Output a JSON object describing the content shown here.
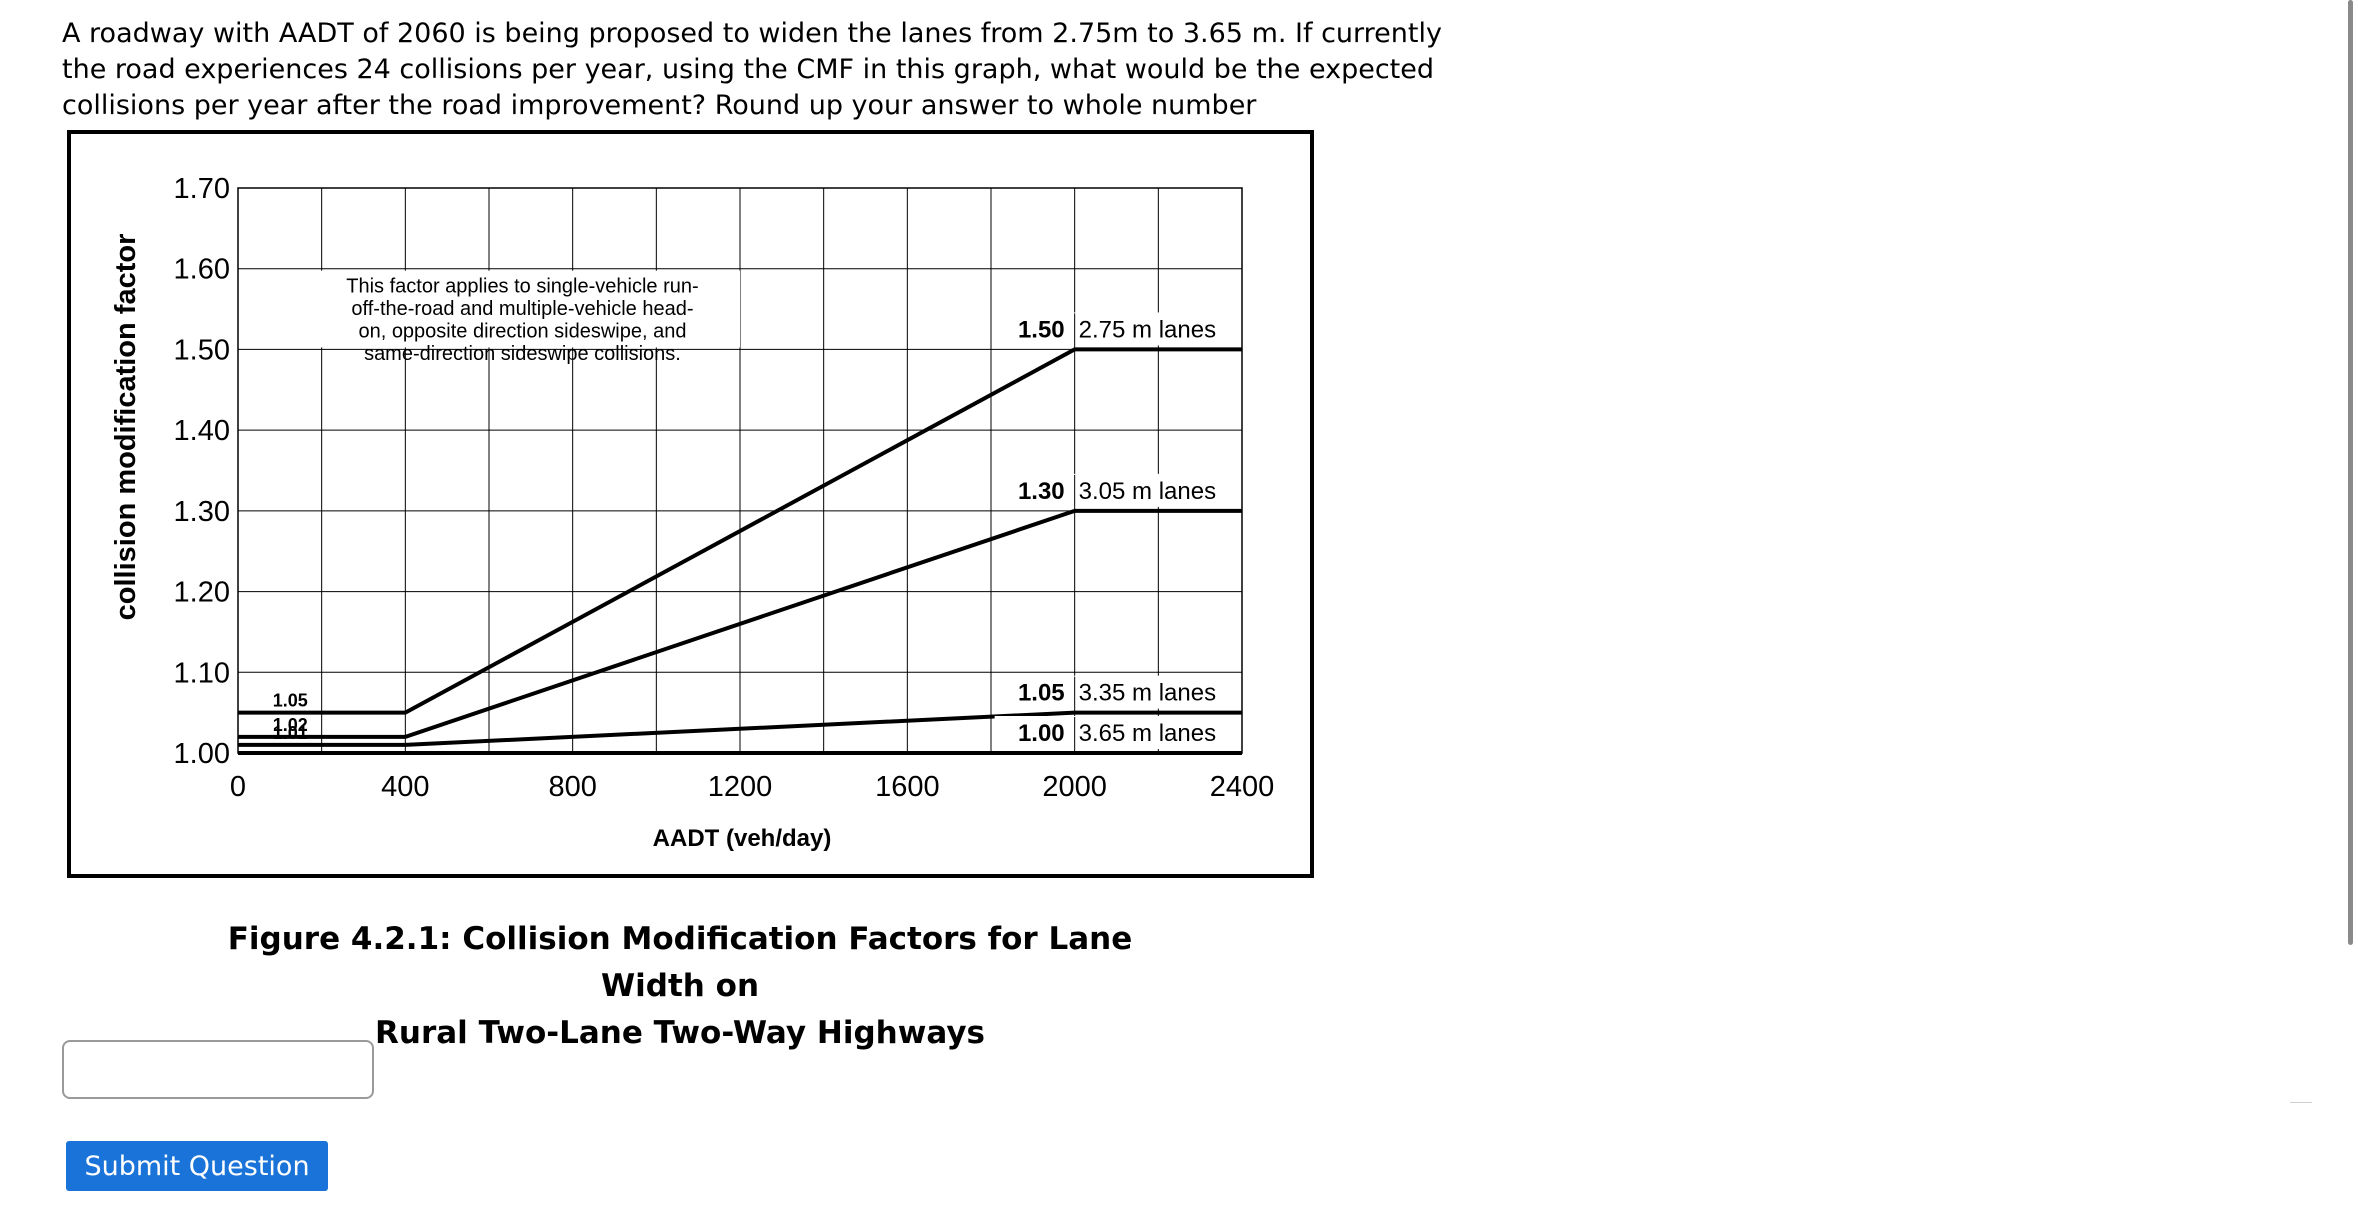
{
  "question": {
    "text": "A roadway with AADT of 2060 is being proposed to widen the lanes from 2.75m to 3.65 m. If currently the road experiences 24 collisions per year, using the CMF in this graph, what would be the expected collisions per year after the road improvement? Round up your answer to whole number"
  },
  "figure": {
    "caption_line1": "Figure 4.2.1: Collision Modification Factors for Lane Width on",
    "caption_line2": "Rural Two-Lane Two-Way Highways"
  },
  "chart_data": {
    "type": "line",
    "xlabel": "AADT (veh/day)",
    "ylabel": "collision modification factor",
    "xlim": [
      0,
      2400
    ],
    "ylim": [
      1.0,
      1.7
    ],
    "x_ticks": [
      "0",
      "400",
      "800",
      "1200",
      "1600",
      "2000",
      "2400"
    ],
    "y_ticks": [
      "1.00",
      "1.10",
      "1.20",
      "1.30",
      "1.40",
      "1.50",
      "1.60",
      "1.70"
    ],
    "grid": true,
    "annotation": {
      "lines": [
        "This factor applies to single-vehicle run-",
        "off-the-road and multiple-vehicle head-",
        "on, opposite direction sideswipe, and",
        "same-direction sideswipe collisions."
      ]
    },
    "series": [
      {
        "name": "2.75 m lanes",
        "end_label": "1.50",
        "start_label": "1.05",
        "points": [
          [
            0,
            1.05
          ],
          [
            400,
            1.05
          ],
          [
            2000,
            1.5
          ],
          [
            2400,
            1.5
          ]
        ]
      },
      {
        "name": "3.05 m lanes",
        "end_label": "1.30",
        "start_label": "1.02",
        "points": [
          [
            0,
            1.02
          ],
          [
            400,
            1.02
          ],
          [
            2000,
            1.3
          ],
          [
            2400,
            1.3
          ]
        ]
      },
      {
        "name": "3.35 m lanes",
        "end_label": "1.05",
        "start_label": "1.01",
        "points": [
          [
            0,
            1.01
          ],
          [
            400,
            1.01
          ],
          [
            2000,
            1.05
          ],
          [
            2400,
            1.05
          ]
        ]
      },
      {
        "name": "3.65 m lanes",
        "end_label": "1.00",
        "start_label": "",
        "points": [
          [
            0,
            1.0
          ],
          [
            2400,
            1.0
          ]
        ]
      }
    ]
  },
  "form": {
    "answer_value": "",
    "submit_label": "Submit Question"
  }
}
